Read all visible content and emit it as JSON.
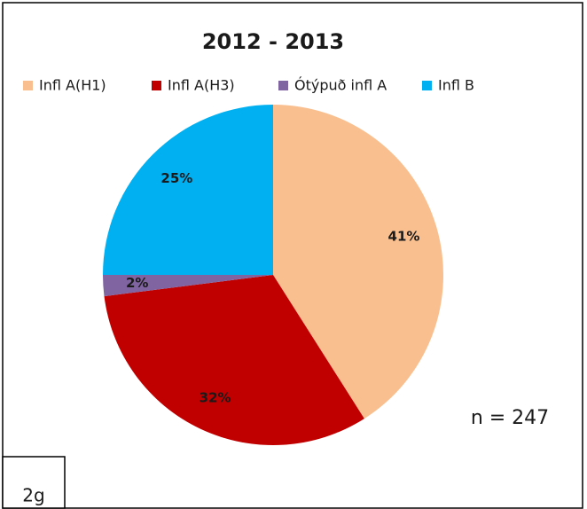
{
  "chart_data": {
    "type": "pie",
    "title": "2012 - 2013",
    "categories": [
      "Infl A(H1)",
      "Infl A(H3)",
      "Ótýpuð infl A",
      "Infl B"
    ],
    "values": [
      41,
      32,
      2,
      25
    ],
    "value_labels": [
      "41%",
      "32%",
      "2%",
      "25%"
    ],
    "colors": [
      "#f9bf8f",
      "#c00000",
      "#8064a2",
      "#00b0f0"
    ],
    "legend": "top",
    "annotation": "n = 247"
  },
  "panel_label": "2g"
}
